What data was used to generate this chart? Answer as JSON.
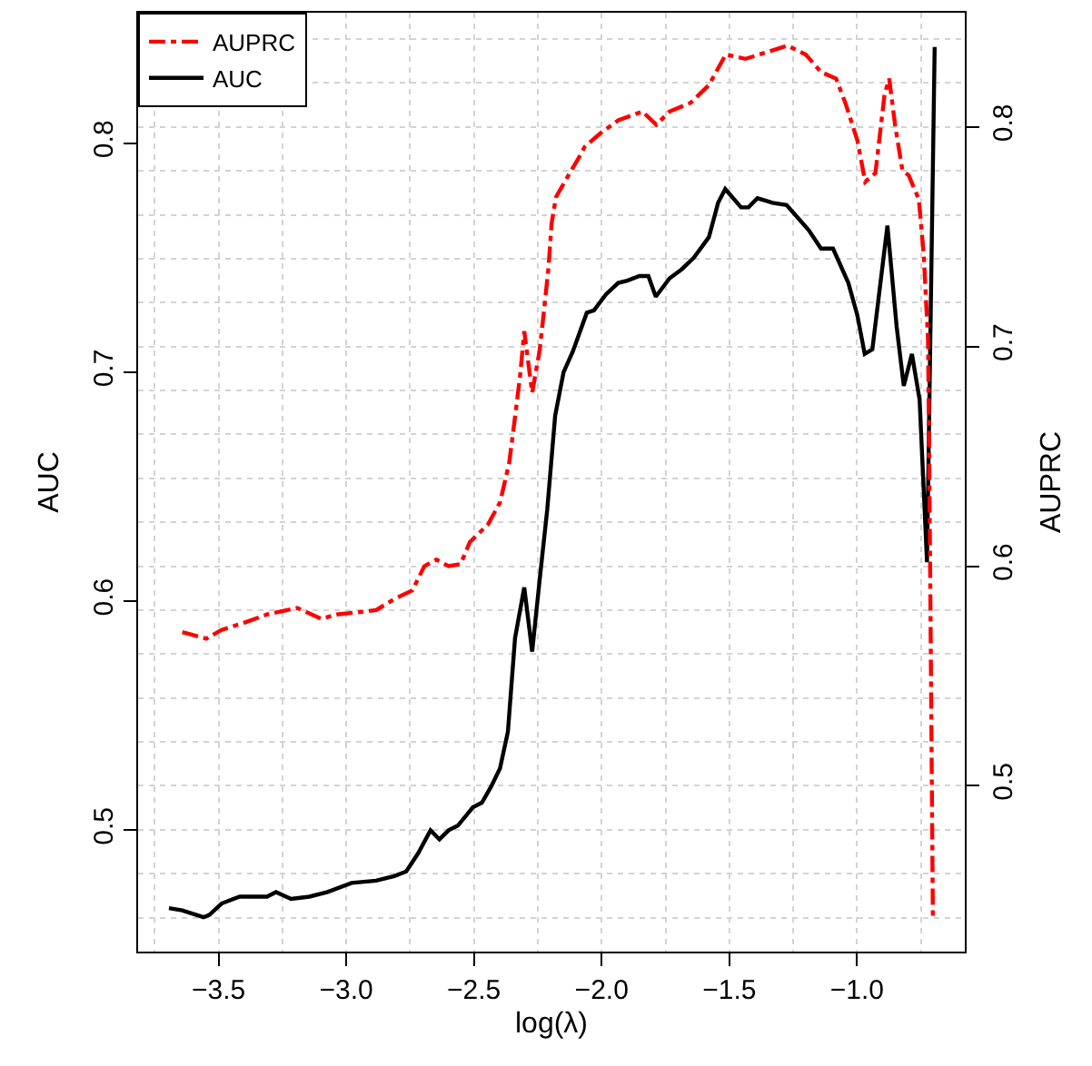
{
  "chart_data": {
    "type": "line",
    "xlabel": "log(λ)",
    "ylabel": "AUC",
    "y2label": "AUPRC",
    "xlim": [
      -3.815,
      -0.578
    ],
    "ylim": [
      0.447,
      0.857
    ],
    "y2lim": [
      0.4245,
      0.852
    ],
    "xticks": [
      {
        "value": -3.5,
        "label": "−3.5"
      },
      {
        "value": -3,
        "label": "−3.0"
      },
      {
        "value": -2.5,
        "label": "−2.5"
      },
      {
        "value": -2,
        "label": "−2.0"
      },
      {
        "value": -1.5,
        "label": "−1.5"
      },
      {
        "value": -1,
        "label": "−1.0"
      }
    ],
    "yticks": [
      0.5,
      0.6,
      0.7,
      0.8
    ],
    "y2ticks": [
      0.5,
      0.6,
      0.7,
      0.8
    ],
    "grid": true,
    "legend": "top left",
    "marker": "none",
    "series": [
      {
        "name": "AUPRC",
        "color": "#ff0000",
        "axis": "y2",
        "line_style": "dashdot",
        "x": [
          -3.642,
          -3.548,
          -3.488,
          -3.405,
          -3.31,
          -3.192,
          -3.097,
          -3.038,
          -2.954,
          -2.883,
          -2.812,
          -2.741,
          -2.694,
          -2.647,
          -2.599,
          -2.552,
          -2.516,
          -2.445,
          -2.398,
          -2.362,
          -2.339,
          -2.319,
          -2.303,
          -2.291,
          -2.272,
          -2.243,
          -2.225,
          -2.208,
          -2.196,
          -2.179,
          -2.125,
          -2.089,
          -2.066,
          -2.006,
          -1.935,
          -1.84,
          -1.786,
          -1.734,
          -1.651,
          -1.58,
          -1.514,
          -1.437,
          -1.354,
          -1.272,
          -1.201,
          -1.141,
          -1.082,
          -1.046,
          -0.999,
          -0.968,
          -0.928,
          -0.892,
          -0.874,
          -0.85,
          -0.822,
          -0.798,
          -0.758,
          -0.739,
          -0.722,
          -0.715,
          -0.703
        ],
        "values": [
          0.57,
          0.567,
          0.571,
          0.574,
          0.578,
          0.581,
          0.576,
          0.578,
          0.579,
          0.58,
          0.585,
          0.589,
          0.6,
          0.603,
          0.6,
          0.601,
          0.611,
          0.619,
          0.629,
          0.647,
          0.668,
          0.687,
          0.707,
          0.696,
          0.679,
          0.698,
          0.717,
          0.736,
          0.756,
          0.768,
          0.779,
          0.786,
          0.791,
          0.797,
          0.803,
          0.807,
          0.801,
          0.807,
          0.811,
          0.819,
          0.833,
          0.831,
          0.834,
          0.837,
          0.833,
          0.825,
          0.822,
          0.811,
          0.794,
          0.775,
          0.779,
          0.815,
          0.822,
          0.8,
          0.78,
          0.778,
          0.767,
          0.742,
          0.703,
          0.618,
          0.44
        ]
      },
      {
        "name": "AUC",
        "color": "#000000",
        "line_style": "solid",
        "x": [
          -3.694,
          -3.642,
          -3.559,
          -3.536,
          -3.488,
          -3.417,
          -3.31,
          -3.275,
          -3.216,
          -3.144,
          -3.073,
          -2.979,
          -2.883,
          -2.812,
          -2.765,
          -2.718,
          -2.67,
          -2.635,
          -2.599,
          -2.563,
          -2.504,
          -2.469,
          -2.433,
          -2.398,
          -2.367,
          -2.339,
          -2.303,
          -2.272,
          -2.243,
          -2.213,
          -2.182,
          -2.149,
          -2.113,
          -2.058,
          -2.03,
          -1.983,
          -1.935,
          -1.9,
          -1.852,
          -1.817,
          -1.788,
          -1.734,
          -1.686,
          -1.639,
          -1.58,
          -1.544,
          -1.516,
          -1.454,
          -1.425,
          -1.39,
          -1.359,
          -1.331,
          -1.276,
          -1.236,
          -1.189,
          -1.141,
          -1.094,
          -1.034,
          -0.999,
          -0.97,
          -0.94,
          -0.881,
          -0.845,
          -0.817,
          -0.785,
          -0.755,
          -0.726,
          -0.696
        ],
        "values": [
          0.466,
          0.465,
          0.462,
          0.463,
          0.468,
          0.471,
          0.471,
          0.473,
          0.47,
          0.471,
          0.473,
          0.477,
          0.478,
          0.48,
          0.482,
          0.49,
          0.5,
          0.496,
          0.5,
          0.502,
          0.51,
          0.512,
          0.519,
          0.527,
          0.543,
          0.584,
          0.606,
          0.578,
          0.609,
          0.64,
          0.681,
          0.7,
          0.709,
          0.726,
          0.727,
          0.734,
          0.739,
          0.74,
          0.742,
          0.742,
          0.733,
          0.741,
          0.745,
          0.75,
          0.759,
          0.774,
          0.78,
          0.772,
          0.772,
          0.776,
          0.775,
          0.774,
          0.773,
          0.768,
          0.762,
          0.754,
          0.754,
          0.739,
          0.725,
          0.708,
          0.71,
          0.764,
          0.72,
          0.694,
          0.708,
          0.688,
          0.617,
          0.842
        ]
      }
    ]
  }
}
